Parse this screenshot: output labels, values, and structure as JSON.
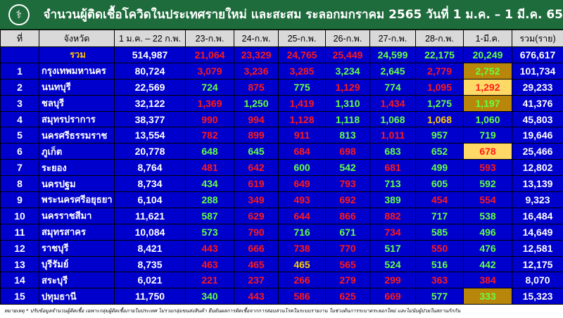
{
  "title": "จำนวนผู้ติดเชื้อโควิดในประเทศรายใหม่ และสะสม ระลอกมกราคม 2565 วันที่ 1 ม.ค. – 1 มี.ค. 65",
  "logo_icon": "ministry-of-public-health-logo",
  "colors": {
    "row_bg": "#0000cc",
    "header_bg": "#d9d9d9",
    "title_bg": "#1e6b3c",
    "r": "#ff1a1a",
    "g": "#66ff44",
    "y": "#ffcc00",
    "hl-dark": "#b8860b",
    "hl-light": "#ffd966"
  },
  "headers": [
    "ที่",
    "จังหวัด",
    "1 ม.ค. – 22 ก.พ.",
    "23-ก.พ.",
    "24-ก.พ.",
    "25-ก.พ.",
    "26-ก.พ.",
    "27-ก.พ.",
    "28-ก.พ.",
    "1-มี.ค.",
    "รวม(ราย)"
  ],
  "total": {
    "label": "รวม",
    "values": [
      "514,987",
      "21,064",
      "23,329",
      "24,765",
      "25,449",
      "24,599",
      "22,175",
      "20,249",
      "676,617"
    ],
    "colors": [
      "w",
      "r",
      "r",
      "r",
      "r",
      "g",
      "g",
      "g",
      "w"
    ]
  },
  "rows": [
    {
      "no": "1",
      "province": "กรุงเทพมหานคร",
      "values": [
        "80,724",
        "3,079",
        "3,236",
        "3,285",
        "3,234",
        "2,645",
        "2,779",
        "2,752",
        "101,734"
      ],
      "colors": [
        "w",
        "r",
        "r",
        "r",
        "g",
        "g",
        "r",
        "g",
        "w"
      ],
      "highlight": "hl-dark"
    },
    {
      "no": "2",
      "province": "นนทบุรี",
      "values": [
        "22,569",
        "724",
        "875",
        "775",
        "1,129",
        "774",
        "1,095",
        "1,292",
        "29,233"
      ],
      "colors": [
        "w",
        "g",
        "r",
        "g",
        "r",
        "g",
        "r",
        "r",
        "w"
      ],
      "highlight": "hl-light"
    },
    {
      "no": "3",
      "province": "ชลบุรี",
      "values": [
        "32,122",
        "1,369",
        "1,250",
        "1,419",
        "1,310",
        "1,434",
        "1,275",
        "1,197",
        "41,376"
      ],
      "colors": [
        "w",
        "r",
        "g",
        "r",
        "g",
        "r",
        "g",
        "g",
        "w"
      ],
      "highlight": "hl-dark"
    },
    {
      "no": "4",
      "province": "สมุทรปราการ",
      "values": [
        "38,377",
        "990",
        "994",
        "1,128",
        "1,118",
        "1,068",
        "1,068",
        "1,060",
        "45,803"
      ],
      "colors": [
        "w",
        "r",
        "r",
        "r",
        "g",
        "g",
        "y",
        "g",
        "w"
      ],
      "highlight": ""
    },
    {
      "no": "5",
      "province": "นครศรีธรรมราช",
      "values": [
        "13,554",
        "782",
        "899",
        "911",
        "813",
        "1,011",
        "957",
        "719",
        "19,646"
      ],
      "colors": [
        "w",
        "r",
        "r",
        "r",
        "g",
        "r",
        "g",
        "g",
        "w"
      ],
      "highlight": ""
    },
    {
      "no": "6",
      "province": "ภูเก็ต",
      "values": [
        "20,778",
        "648",
        "645",
        "684",
        "698",
        "683",
        "652",
        "678",
        "25,466"
      ],
      "colors": [
        "w",
        "g",
        "g",
        "r",
        "r",
        "g",
        "g",
        "r",
        "w"
      ],
      "highlight": "hl-light"
    },
    {
      "no": "7",
      "province": "ระยอง",
      "values": [
        "8,764",
        "481",
        "642",
        "600",
        "542",
        "681",
        "499",
        "593",
        "12,802"
      ],
      "colors": [
        "w",
        "r",
        "r",
        "g",
        "g",
        "r",
        "g",
        "r",
        "w"
      ],
      "highlight": ""
    },
    {
      "no": "8",
      "province": "นครปฐม",
      "values": [
        "8,734",
        "434",
        "619",
        "649",
        "793",
        "713",
        "605",
        "592",
        "13,139"
      ],
      "colors": [
        "w",
        "g",
        "r",
        "r",
        "r",
        "g",
        "g",
        "g",
        "w"
      ],
      "highlight": ""
    },
    {
      "no": "9",
      "province": "พระนครศรีอยุธยา",
      "values": [
        "6,104",
        "288",
        "349",
        "493",
        "692",
        "389",
        "454",
        "554",
        "9,323"
      ],
      "colors": [
        "w",
        "g",
        "r",
        "r",
        "r",
        "g",
        "r",
        "r",
        "w"
      ],
      "highlight": ""
    },
    {
      "no": "10",
      "province": "นครราชสีมา",
      "values": [
        "11,621",
        "587",
        "629",
        "644",
        "866",
        "882",
        "717",
        "538",
        "16,484"
      ],
      "colors": [
        "w",
        "g",
        "r",
        "r",
        "r",
        "r",
        "g",
        "g",
        "w"
      ],
      "highlight": ""
    },
    {
      "no": "11",
      "province": "สมุทรสาคร",
      "values": [
        "10,084",
        "573",
        "790",
        "716",
        "671",
        "734",
        "585",
        "496",
        "14,649"
      ],
      "colors": [
        "w",
        "g",
        "r",
        "g",
        "g",
        "r",
        "g",
        "g",
        "w"
      ],
      "highlight": ""
    },
    {
      "no": "12",
      "province": "ราชบุรี",
      "values": [
        "8,421",
        "443",
        "666",
        "738",
        "770",
        "517",
        "550",
        "476",
        "12,581"
      ],
      "colors": [
        "w",
        "r",
        "r",
        "r",
        "r",
        "g",
        "r",
        "g",
        "w"
      ],
      "highlight": ""
    },
    {
      "no": "13",
      "province": "บุรีรัมย์",
      "values": [
        "8,735",
        "463",
        "465",
        "465",
        "565",
        "524",
        "516",
        "442",
        "12,175"
      ],
      "colors": [
        "w",
        "r",
        "r",
        "y",
        "r",
        "g",
        "g",
        "g",
        "w"
      ],
      "highlight": ""
    },
    {
      "no": "14",
      "province": "สระบุรี",
      "values": [
        "6,021",
        "221",
        "237",
        "266",
        "279",
        "299",
        "363",
        "384",
        "8,070"
      ],
      "colors": [
        "w",
        "r",
        "r",
        "r",
        "r",
        "r",
        "r",
        "r",
        "w"
      ],
      "highlight": ""
    },
    {
      "no": "15",
      "province": "ปทุมธานี",
      "values": [
        "11,750",
        "340",
        "443",
        "586",
        "625",
        "669",
        "577",
        "333",
        "15,323"
      ],
      "colors": [
        "w",
        "g",
        "r",
        "r",
        "r",
        "r",
        "g",
        "g",
        "w"
      ],
      "highlight": "hl-dark"
    }
  ],
  "footer": "หมายเหตุ * ปรับข้อมูลจำนวนผู้ติดเชื้อ เฉพาะกลุ่มผู้ติดเชื้อภายในประเทศ ไม่รวมกลุ่มขนส่งสินค้า ยืนยันผลการติดเชื้อจากการสอบสวนโรคในระบบรายงาน ในช่วงต้นการระบาดระลอกใหม่ และไม่นับผู้ป่วยในสถานกักกัน"
}
